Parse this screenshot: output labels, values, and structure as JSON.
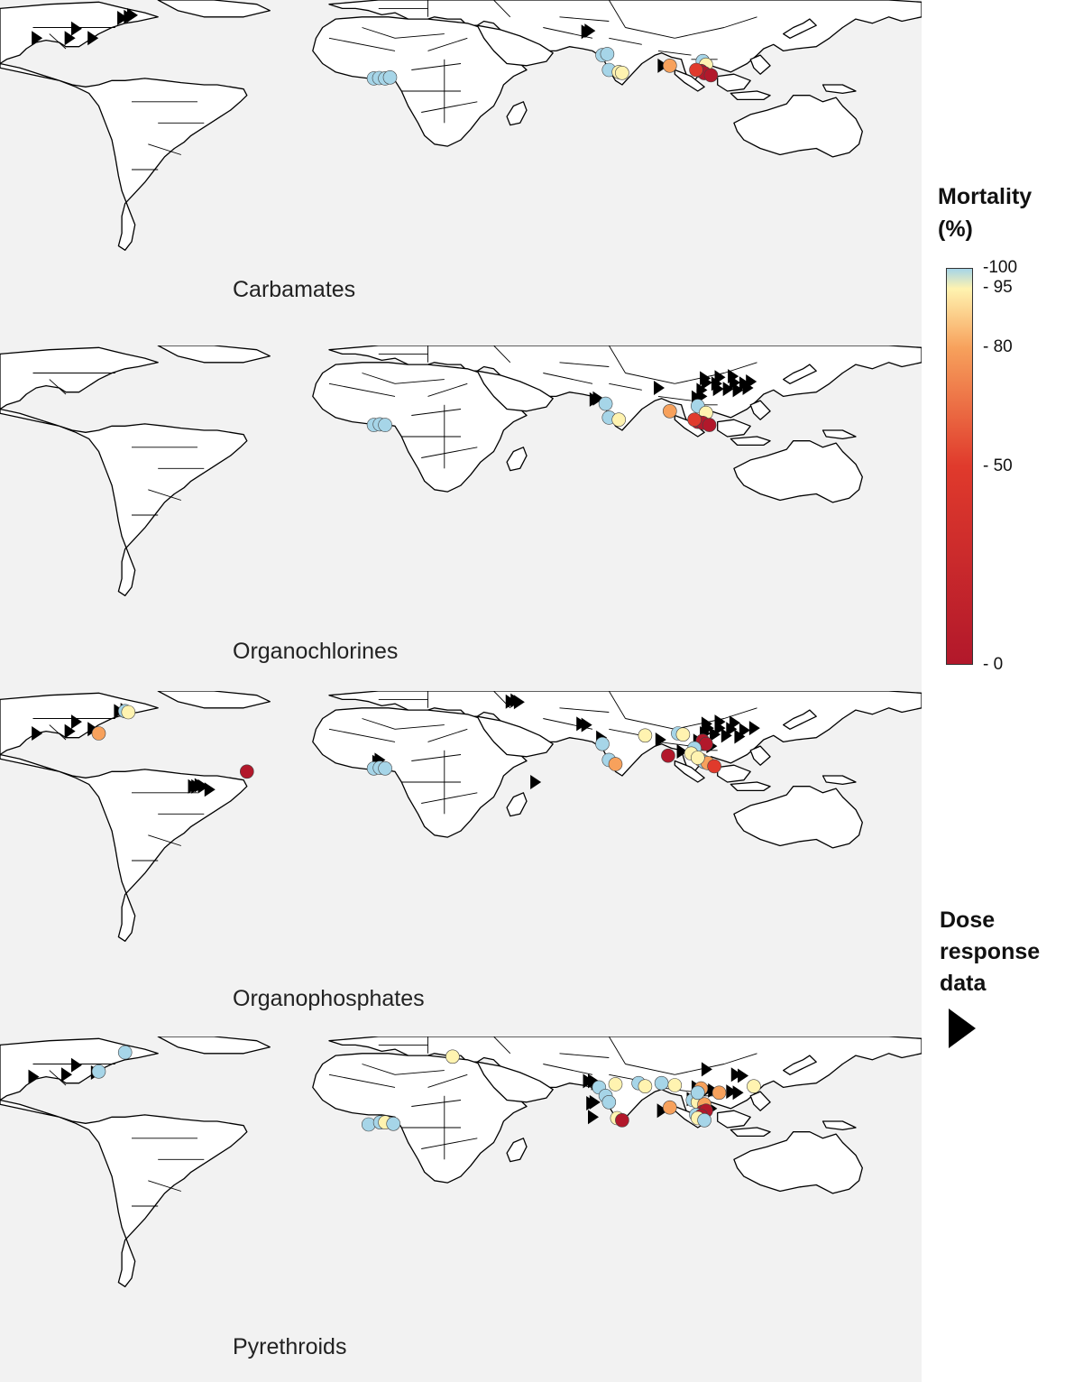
{
  "panels": [
    {
      "key": "carbamates",
      "label": "Carbamates"
    },
    {
      "key": "organochlorines",
      "label": "Organochlorines"
    },
    {
      "key": "organophosphates",
      "label": "Organophosphates"
    },
    {
      "key": "pyrethroids",
      "label": "Pyrethroids"
    }
  ],
  "legend": {
    "title_line1": "Mortality",
    "title_line2": "(%)",
    "ticks": [
      {
        "value": 100,
        "label": "-100"
      },
      {
        "value": 95,
        "label": "- 95"
      },
      {
        "value": 80,
        "label": "- 80"
      },
      {
        "value": 50,
        "label": "- 50"
      },
      {
        "value": 0,
        "label": "- 0"
      }
    ],
    "colors": {
      "0": "#b2182b",
      "50": "#e03a2c",
      "80": "#f7a15c",
      "95": "#fff3b0",
      "100": "#a6d5e8"
    },
    "dose_line1": "Dose",
    "dose_line2": "response",
    "dose_line3": "data",
    "dose_icon": "right-triangle-icon"
  },
  "sites": {
    "carbamates": {
      "circles": [
        [
          3.6,
          51.0,
          100
        ],
        [
          5.2,
          51.2,
          100
        ],
        [
          7.0,
          51.0,
          100
        ],
        [
          8.5,
          51.5,
          100
        ],
        [
          73.0,
          62.0,
          100
        ],
        [
          74.5,
          62.5,
          100
        ],
        [
          75.0,
          55.0,
          100
        ],
        [
          78.0,
          54.0,
          95
        ],
        [
          79.0,
          53.6,
          95
        ],
        [
          93.5,
          57.0,
          80
        ],
        [
          103.5,
          59.2,
          100
        ],
        [
          104.5,
          57.5,
          95
        ],
        [
          103.0,
          54.5,
          0
        ],
        [
          104.0,
          53.5,
          0
        ],
        [
          106.0,
          52.5,
          0
        ],
        [
          101.5,
          55.0,
          50
        ]
      ],
      "triangles": [
        [
          -99,
          70.0
        ],
        [
          -89,
          70.0
        ],
        [
          -82,
          70.0
        ],
        [
          -87,
          74.5
        ],
        [
          -73,
          79.5
        ],
        [
          -71,
          80.0
        ],
        [
          -70,
          80.8
        ],
        [
          68.0,
          73.0
        ],
        [
          69.0,
          73.5
        ],
        [
          91.2,
          57.0
        ]
      ]
    },
    "organochlorines": {
      "circles": [
        [
          3.6,
          50.5,
          100
        ],
        [
          5.4,
          50.8,
          100
        ],
        [
          7.0,
          50.5,
          100
        ],
        [
          74.0,
          60.5,
          100
        ],
        [
          75.0,
          54.0,
          100
        ],
        [
          78.0,
          53.0,
          95
        ],
        [
          93.5,
          57.0,
          80
        ],
        [
          102.0,
          59.5,
          100
        ],
        [
          104.5,
          56.2,
          95
        ],
        [
          102.0,
          52.0,
          0
        ],
        [
          103.5,
          51.5,
          0
        ],
        [
          105.5,
          50.5,
          0
        ],
        [
          101.0,
          53.0,
          50
        ]
      ],
      "triangles": [
        [
          90.0,
          68.0
        ],
        [
          104.0,
          72.5
        ],
        [
          108.5,
          73.0
        ],
        [
          112.5,
          73.5
        ],
        [
          104.5,
          70.5
        ],
        [
          107.5,
          70.0
        ],
        [
          113.0,
          70.5
        ],
        [
          116.0,
          70.0
        ],
        [
          118.0,
          71.0
        ],
        [
          103.0,
          67.0
        ],
        [
          108.0,
          67.5
        ],
        [
          111.0,
          67.5
        ],
        [
          114.0,
          67.0
        ],
        [
          117.0,
          68.0
        ],
        [
          101.5,
          63.5
        ],
        [
          103.0,
          64.0
        ],
        [
          70.5,
          62.5
        ],
        [
          71.5,
          63.0
        ]
      ]
    },
    "organophosphates": {
      "circles": [
        [
          -72,
          78.5,
          100
        ],
        [
          -71,
          78.0,
          95
        ],
        [
          -80,
          68.0,
          80
        ],
        [
          -35,
          50.0,
          0
        ],
        [
          3.6,
          51.5,
          100
        ],
        [
          5.4,
          51.8,
          100
        ],
        [
          7.0,
          51.5,
          100
        ],
        [
          73.0,
          63.0,
          100
        ],
        [
          75.0,
          55.5,
          100
        ],
        [
          77.0,
          53.5,
          80
        ],
        [
          86.0,
          67.0,
          95
        ],
        [
          96.0,
          68.0,
          100
        ],
        [
          97.5,
          67.5,
          95
        ],
        [
          103.5,
          64.5,
          0
        ],
        [
          104.5,
          63.0,
          0
        ],
        [
          101.0,
          61.0,
          100
        ],
        [
          100.0,
          58.5,
          95
        ],
        [
          103.0,
          55.5,
          80
        ],
        [
          104.0,
          54.5,
          100
        ],
        [
          105.0,
          54.0,
          80
        ],
        [
          107.0,
          52.5,
          50
        ],
        [
          93.0,
          57.5,
          0
        ],
        [
          102.0,
          56.5,
          95
        ]
      ],
      "triangles": [
        [
          -99,
          68.0
        ],
        [
          -89,
          69.0
        ],
        [
          -82,
          70.0
        ],
        [
          -87,
          73.5
        ],
        [
          -74,
          78.5
        ],
        [
          -72,
          79.0
        ],
        [
          -51.5,
          43.0
        ],
        [
          -50.5,
          43.0
        ],
        [
          -49.5,
          43.5
        ],
        [
          -48.5,
          43.0
        ],
        [
          -46.5,
          41.5
        ],
        [
          5.2,
          55.5
        ],
        [
          4.5,
          54.5
        ],
        [
          45.0,
          83.0
        ],
        [
          46.5,
          83.5
        ],
        [
          47.5,
          82.8
        ],
        [
          52.5,
          45.0
        ],
        [
          66.5,
          72.5
        ],
        [
          68.0,
          72.0
        ],
        [
          72.5,
          66.0
        ],
        [
          90.5,
          65.0
        ],
        [
          104.5,
          72.5
        ],
        [
          108.5,
          73.5
        ],
        [
          113.0,
          73.0
        ],
        [
          105.0,
          70.5
        ],
        [
          108.5,
          70.5
        ],
        [
          112.0,
          70.0
        ],
        [
          116.0,
          69.5
        ],
        [
          119.0,
          70.5
        ],
        [
          104.0,
          68.0
        ],
        [
          107.0,
          67.5
        ],
        [
          110.5,
          67.0
        ],
        [
          114.5,
          66.5
        ],
        [
          102.0,
          64.5
        ],
        [
          104.0,
          64.0
        ],
        [
          106.0,
          62.0
        ],
        [
          97.0,
          59.5
        ]
      ]
    },
    "pyrethroids": {
      "circles": [
        [
          -72,
          80.5,
          100
        ],
        [
          -80,
          71.5,
          100
        ],
        [
          27.5,
          78.5,
          95
        ],
        [
          2.0,
          46.5,
          100
        ],
        [
          5.5,
          47.5,
          100
        ],
        [
          7.0,
          47.5,
          95
        ],
        [
          9.5,
          46.8,
          100
        ],
        [
          72.0,
          64.0,
          100
        ],
        [
          77.0,
          65.5,
          95
        ],
        [
          84.0,
          66.0,
          100
        ],
        [
          86.0,
          64.5,
          95
        ],
        [
          91.0,
          66.0,
          100
        ],
        [
          95.0,
          65.0,
          95
        ],
        [
          74.0,
          60.0,
          100
        ],
        [
          75.0,
          57.0,
          100
        ],
        [
          77.5,
          49.5,
          95
        ],
        [
          79.0,
          48.5,
          0
        ],
        [
          93.5,
          54.5,
          80
        ],
        [
          100.5,
          58.0,
          100
        ],
        [
          102.0,
          57.0,
          95
        ],
        [
          104.0,
          56.0,
          80
        ],
        [
          103.5,
          52.5,
          0
        ],
        [
          104.5,
          53.0,
          0
        ],
        [
          101.5,
          51.0,
          100
        ],
        [
          103.0,
          50.5,
          0
        ],
        [
          102.0,
          49.5,
          95
        ],
        [
          104.0,
          48.5,
          100
        ],
        [
          108.5,
          61.5,
          80
        ],
        [
          119.0,
          64.5,
          95
        ],
        [
          103.0,
          63.5,
          80
        ],
        [
          102.0,
          61.5,
          100
        ]
      ],
      "triangles": [
        [
          -100,
          69.0
        ],
        [
          -90,
          70.0
        ],
        [
          -81,
          71.0
        ],
        [
          -87,
          74.5
        ],
        [
          68.5,
          67.0
        ],
        [
          70.0,
          67.0
        ],
        [
          71.0,
          66.0
        ],
        [
          69.5,
          56.5
        ],
        [
          70.5,
          57.0
        ],
        [
          70.0,
          50.0
        ],
        [
          91.0,
          53.0
        ],
        [
          104.5,
          72.5
        ],
        [
          113.5,
          70.0
        ],
        [
          115.5,
          69.5
        ],
        [
          101.5,
          64.0
        ],
        [
          105.0,
          63.0
        ],
        [
          106.5,
          62.5
        ],
        [
          112.0,
          62.0
        ],
        [
          114.0,
          61.5
        ],
        [
          100.0,
          58.5
        ],
        [
          106.0,
          54.0
        ]
      ]
    }
  }
}
